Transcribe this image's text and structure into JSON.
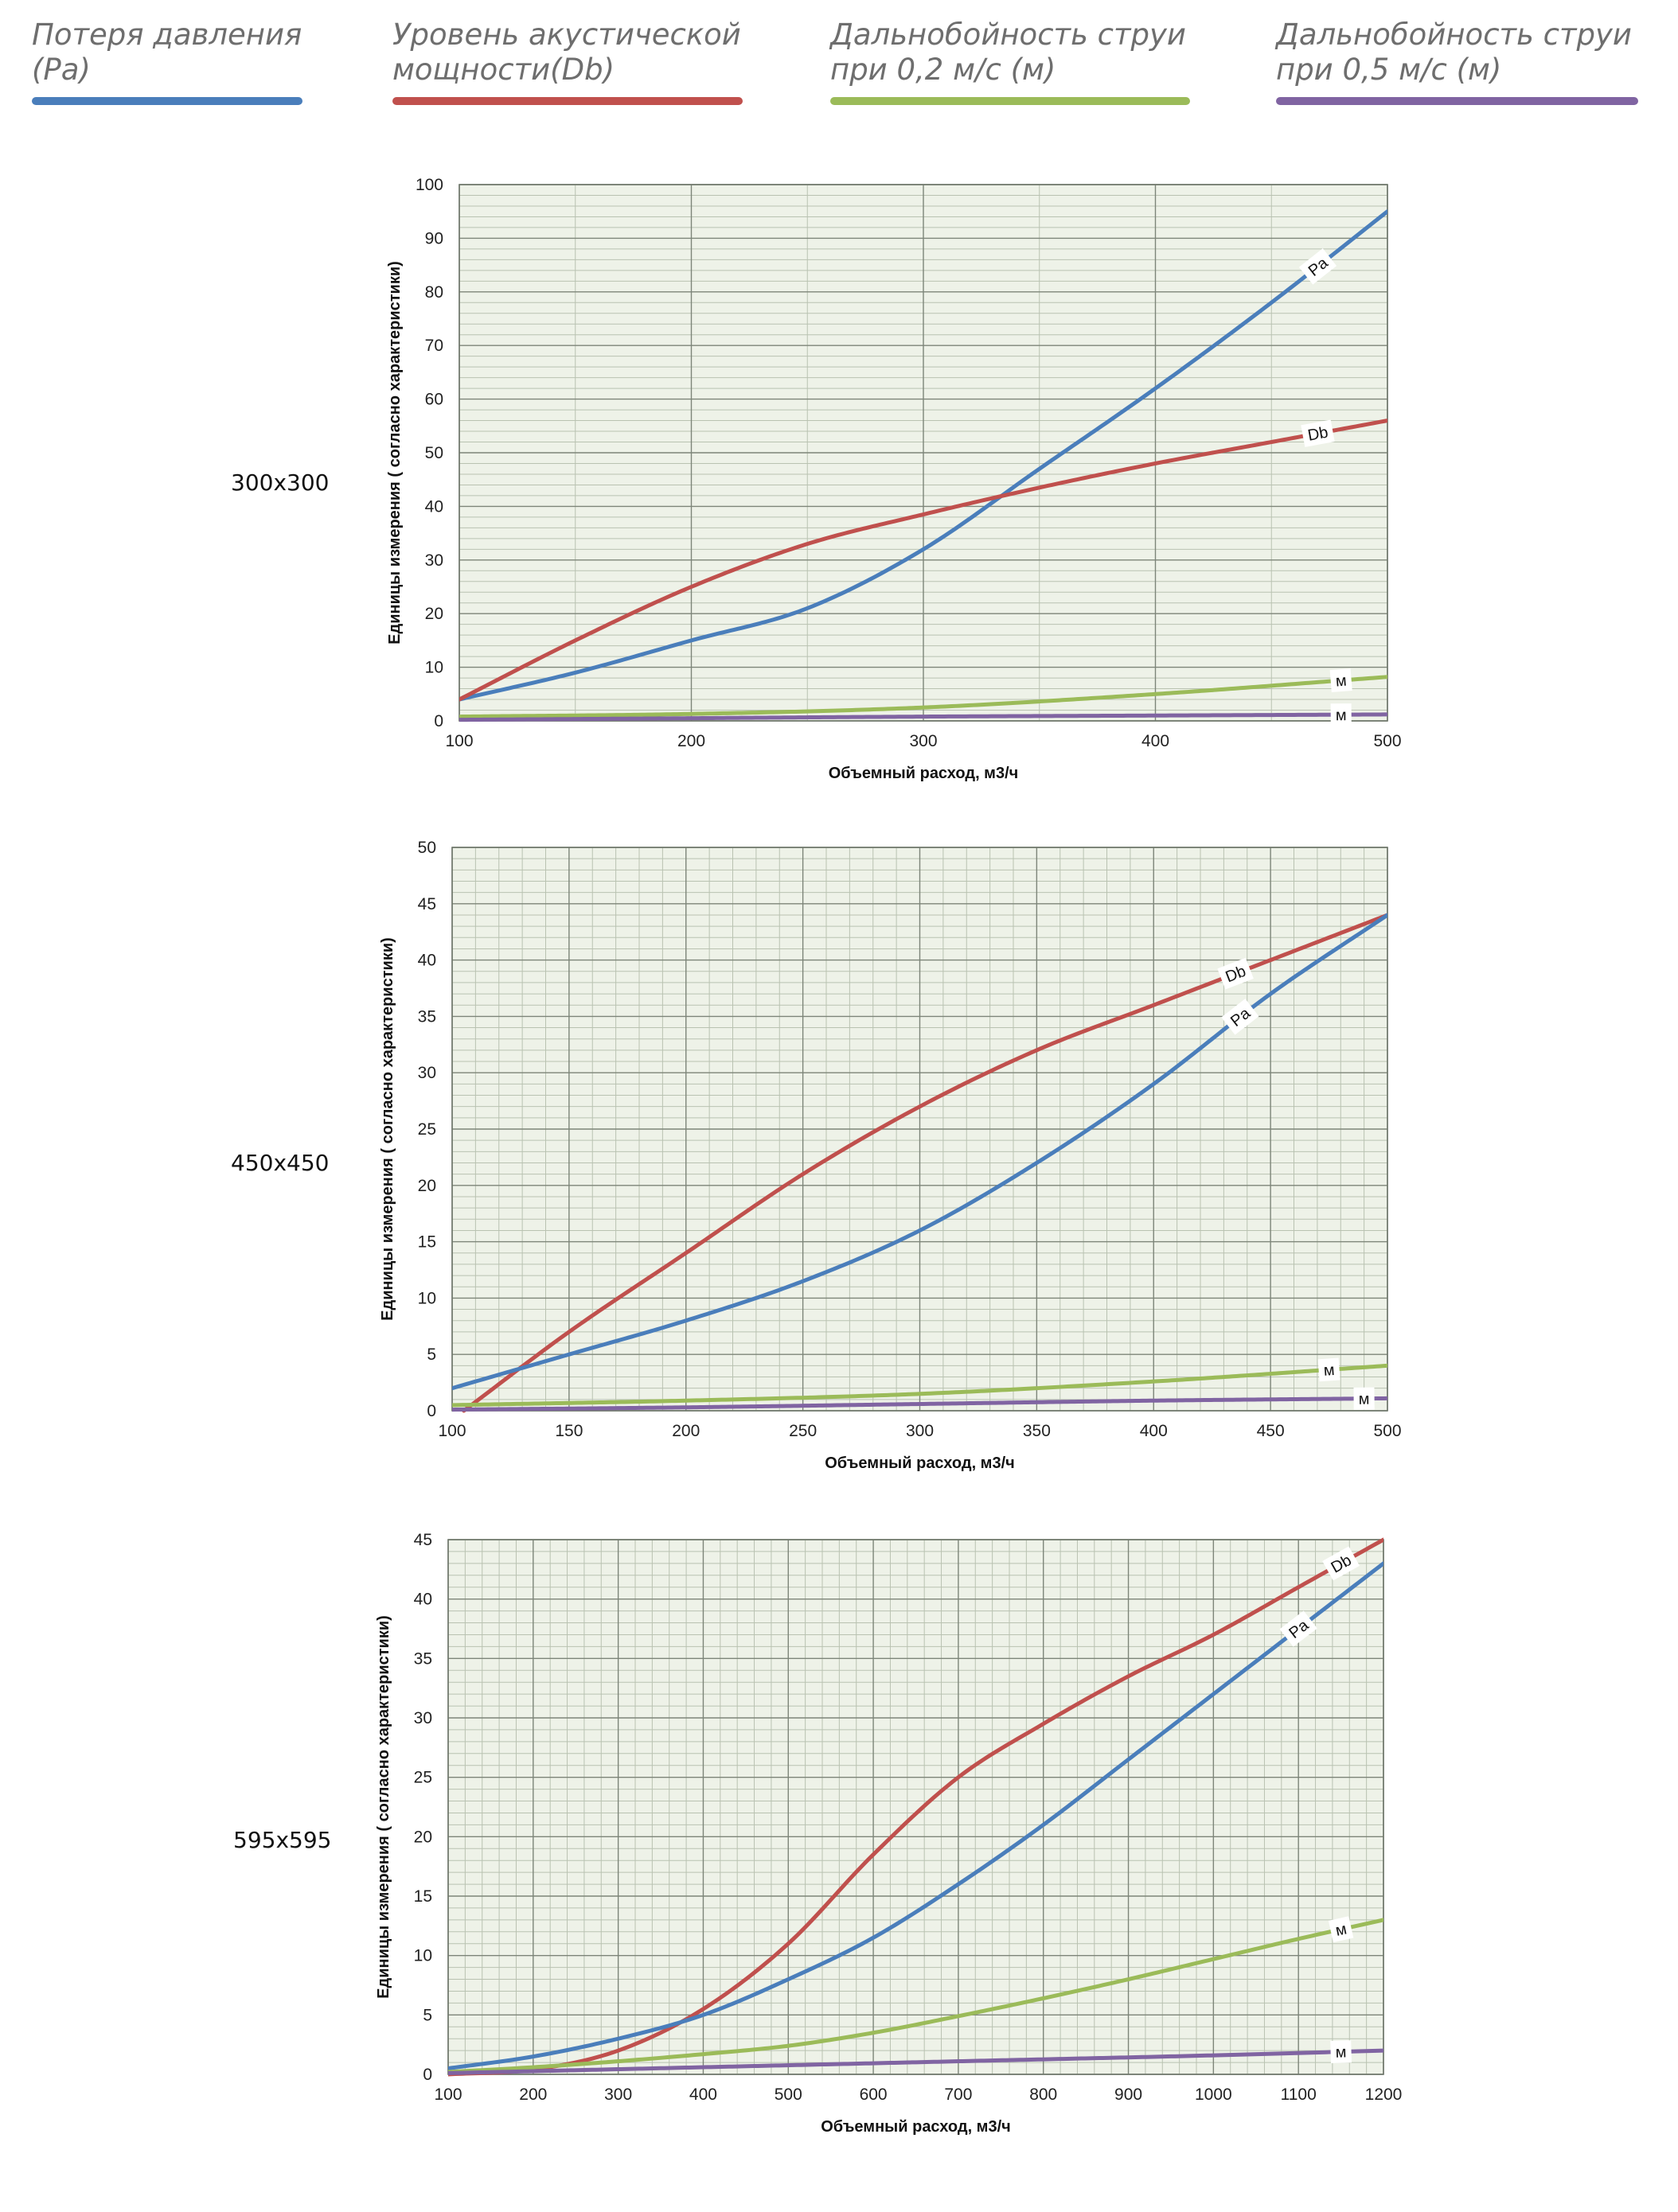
{
  "legend": [
    {
      "label": "Потеря давления\n(Pa)",
      "color": "#4a7ebb"
    },
    {
      "label": "Уровень акустической\nмощности(Db)",
      "color": "#c0504d"
    },
    {
      "label": "Дальнобойность струи\nпри 0,2 м/с (м)",
      "color": "#9bbb59"
    },
    {
      "label": "Дальнобойность струи\nпри 0,5 м/с (м)",
      "color": "#8064a2"
    }
  ],
  "chart_data": [
    {
      "type": "line",
      "size_label": "300x300",
      "xlabel": "Объемный расход, м3/ч",
      "ylabel": "Единицы измерения ( согласно характеристики)",
      "xlim": [
        100,
        500
      ],
      "ylim": [
        0,
        100
      ],
      "xticks": [
        100,
        200,
        300,
        400,
        500
      ],
      "yticks": [
        0,
        10,
        20,
        30,
        40,
        50,
        60,
        70,
        80,
        90,
        100
      ],
      "grid": true,
      "series": [
        {
          "name": "Pa",
          "color": "#4a7ebb",
          "label_at": 470,
          "x": [
            100,
            150,
            200,
            250,
            300,
            350,
            400,
            450,
            500
          ],
          "y": [
            4,
            9,
            15,
            21,
            32,
            47,
            62,
            78,
            95
          ]
        },
        {
          "name": "Db",
          "color": "#c0504d",
          "label_at": 470,
          "x": [
            100,
            150,
            200,
            250,
            300,
            350,
            400,
            450,
            500
          ],
          "y": [
            4,
            15,
            25,
            33,
            38.5,
            43.5,
            48,
            52,
            56
          ]
        },
        {
          "name": "м",
          "color": "#9bbb59",
          "label_at": 480,
          "x": [
            100,
            200,
            300,
            400,
            500
          ],
          "y": [
            0.8,
            1.3,
            2.5,
            5,
            8.2
          ]
        },
        {
          "name": "м",
          "color": "#8064a2",
          "label_at": 480,
          "x": [
            100,
            200,
            300,
            400,
            500
          ],
          "y": [
            0.2,
            0.5,
            0.8,
            1,
            1.2
          ]
        }
      ]
    },
    {
      "type": "line",
      "size_label": "450x450",
      "xlabel": "Объемный расход, м3/ч",
      "ylabel": "Единицы измерения ( согласно характеристики)",
      "xlim": [
        100,
        500
      ],
      "ylim": [
        0,
        50
      ],
      "xticks": [
        100,
        150,
        200,
        250,
        300,
        350,
        400,
        450,
        500
      ],
      "yticks": [
        0,
        5,
        10,
        15,
        20,
        25,
        30,
        35,
        40,
        45,
        50
      ],
      "grid": true,
      "series": [
        {
          "name": "Db",
          "color": "#c0504d",
          "label_at": 435,
          "x": [
            105,
            150,
            200,
            250,
            300,
            350,
            400,
            450,
            500
          ],
          "y": [
            0,
            7,
            14,
            21,
            27,
            32,
            36,
            40,
            44
          ]
        },
        {
          "name": "Pa",
          "color": "#4a7ebb",
          "label_at": 437,
          "x": [
            100,
            150,
            200,
            250,
            300,
            350,
            400,
            450,
            500
          ],
          "y": [
            2,
            5,
            8,
            11.5,
            16,
            22,
            29,
            37,
            44
          ]
        },
        {
          "name": "м",
          "color": "#9bbb59",
          "label_at": 475,
          "x": [
            100,
            200,
            300,
            400,
            500
          ],
          "y": [
            0.5,
            0.9,
            1.5,
            2.6,
            4
          ]
        },
        {
          "name": "м",
          "color": "#8064a2",
          "label_at": 490,
          "x": [
            100,
            200,
            300,
            400,
            500
          ],
          "y": [
            0.1,
            0.3,
            0.6,
            0.9,
            1.1
          ]
        }
      ]
    },
    {
      "type": "line",
      "size_label": "595x595",
      "xlabel": "Объемный расход, м3/ч",
      "ylabel": "Единицы измерения ( согласно характеристики)",
      "xlim": [
        100,
        1200
      ],
      "ylim": [
        0,
        45
      ],
      "xticks": [
        100,
        200,
        300,
        400,
        500,
        600,
        700,
        800,
        900,
        1000,
        1100,
        1200
      ],
      "yticks": [
        0,
        5,
        10,
        15,
        20,
        25,
        30,
        35,
        40,
        45
      ],
      "grid": true,
      "series": [
        {
          "name": "Db",
          "color": "#c0504d",
          "label_at": 1150,
          "x": [
            100,
            200,
            300,
            400,
            500,
            600,
            700,
            800,
            900,
            1000,
            1100,
            1200
          ],
          "y": [
            0,
            0.4,
            2,
            5.5,
            11,
            18.5,
            25,
            29.5,
            33.5,
            37,
            41,
            45
          ]
        },
        {
          "name": "Pa",
          "color": "#4a7ebb",
          "label_at": 1100,
          "x": [
            100,
            200,
            300,
            400,
            500,
            600,
            700,
            800,
            900,
            1000,
            1100,
            1200
          ],
          "y": [
            0.5,
            1.5,
            3,
            5,
            8,
            11.5,
            16,
            21,
            26.5,
            32,
            37.5,
            43
          ]
        },
        {
          "name": "м",
          "color": "#9bbb59",
          "label_at": 1150,
          "x": [
            100,
            200,
            300,
            400,
            500,
            600,
            700,
            800,
            900,
            1000,
            1100,
            1200
          ],
          "y": [
            0.2,
            0.6,
            1.1,
            1.7,
            2.4,
            3.5,
            4.9,
            6.4,
            8,
            9.7,
            11.4,
            13
          ]
        },
        {
          "name": "м",
          "color": "#8064a2",
          "label_at": 1150,
          "x": [
            100,
            400,
            700,
            1000,
            1200
          ],
          "y": [
            0.1,
            0.6,
            1.1,
            1.6,
            2
          ]
        }
      ]
    }
  ]
}
